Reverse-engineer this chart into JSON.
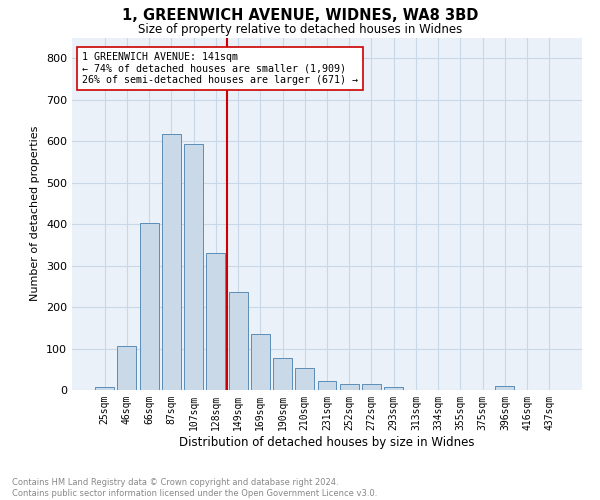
{
  "title_line1": "1, GREENWICH AVENUE, WIDNES, WA8 3BD",
  "title_line2": "Size of property relative to detached houses in Widnes",
  "xlabel": "Distribution of detached houses by size in Widnes",
  "ylabel": "Number of detached properties",
  "footnote": "Contains HM Land Registry data © Crown copyright and database right 2024.\nContains public sector information licensed under the Open Government Licence v3.0.",
  "bar_labels": [
    "25sqm",
    "46sqm",
    "66sqm",
    "87sqm",
    "107sqm",
    "128sqm",
    "149sqm",
    "169sqm",
    "190sqm",
    "210sqm",
    "231sqm",
    "252sqm",
    "272sqm",
    "293sqm",
    "313sqm",
    "334sqm",
    "355sqm",
    "375sqm",
    "396sqm",
    "416sqm",
    "437sqm"
  ],
  "bar_values": [
    8,
    106,
    402,
    617,
    592,
    330,
    236,
    134,
    77,
    52,
    22,
    14,
    15,
    8,
    0,
    0,
    0,
    0,
    10,
    0,
    0
  ],
  "bar_color": "#c9d9e8",
  "bar_edgecolor": "#5b8db8",
  "vline_x_idx": 6,
  "vline_color": "#cc0000",
  "annotation_text": "1 GREENWICH AVENUE: 141sqm\n← 74% of detached houses are smaller (1,909)\n26% of semi-detached houses are larger (671) →",
  "annotation_box_color": "#ffffff",
  "annotation_box_edgecolor": "#cc0000",
  "ylim": [
    0,
    850
  ],
  "yticks": [
    0,
    100,
    200,
    300,
    400,
    500,
    600,
    700,
    800
  ],
  "grid_color": "#c8d8e8",
  "background_color": "#eaf1f8"
}
